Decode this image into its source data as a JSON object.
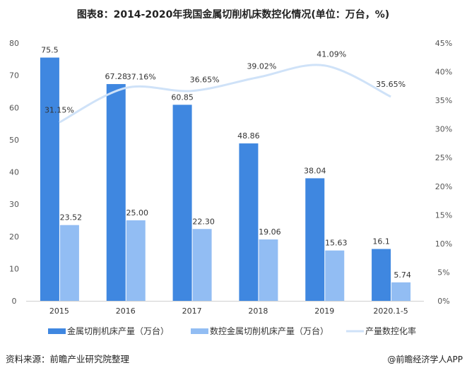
{
  "chart_data": {
    "type": "bar+line",
    "title": "图表8：2014-2020年我国金属切削机床数控化情况(单位：万台，%)",
    "categories": [
      "2015",
      "2016",
      "2017",
      "2018",
      "2019",
      "2020.1-5"
    ],
    "series": [
      {
        "name": "金属切削机床产量（万台）",
        "type": "bar",
        "axis": "left",
        "color": "#3f87e0",
        "values": [
          75.5,
          67.28,
          60.85,
          48.86,
          38.04,
          16.1
        ],
        "labels": [
          "75.5",
          "67.28",
          "60.85",
          "48.86",
          "38.04",
          "16.1"
        ]
      },
      {
        "name": "数控金属切削机床产量（万台）",
        "type": "bar",
        "axis": "left",
        "color": "#92bdf3",
        "values": [
          23.52,
          25.0,
          22.3,
          19.06,
          15.63,
          5.74
        ],
        "labels": [
          "23.52",
          "25.00",
          "22.30",
          "19.06",
          "15.63",
          "5.74"
        ]
      },
      {
        "name": "产量数控化率",
        "type": "line",
        "axis": "right",
        "color": "#cfe2f8",
        "values": [
          31.15,
          37.16,
          36.65,
          39.02,
          41.09,
          35.65
        ],
        "labels": [
          "31.15%",
          "37.16%",
          "36.65%",
          "39.02%",
          "41.09%",
          "35.65%"
        ]
      }
    ],
    "y_left": {
      "ylim": [
        0,
        80
      ],
      "ticks": [
        "0",
        "10",
        "20",
        "30",
        "40",
        "50",
        "60",
        "70",
        "80"
      ]
    },
    "y_right": {
      "ylim": [
        0,
        45
      ],
      "ticks": [
        "0%",
        "5%",
        "10%",
        "15%",
        "20%",
        "25%",
        "30%",
        "35%",
        "40%",
        "45%"
      ]
    },
    "grid": false,
    "legend": "bottom"
  },
  "footer": {
    "source": "资料来源：前瞻产业研究院整理",
    "brand": "@前瞻经济学人APP"
  }
}
